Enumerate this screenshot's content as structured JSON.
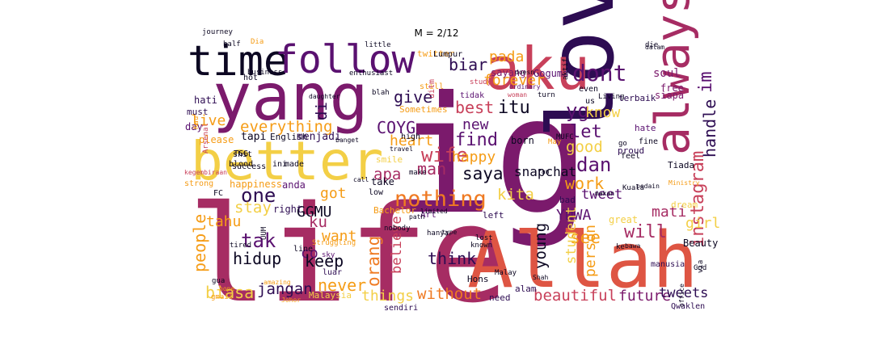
{
  "title": "M = 2/12",
  "palette": {
    "black": "#0c0722",
    "indigo": "#2d0c52",
    "purple": "#5a1170",
    "plum": "#7b1a6c",
    "magenta": "#a62c63",
    "rose": "#c8405a",
    "red": "#de5543",
    "orange": "#ef7a22",
    "amber": "#f59c16",
    "yellow": "#f3cf46",
    "pale": "#f4e39a"
  },
  "words": [
    {
      "text": "life",
      "color": "magenta"
    },
    {
      "text": "ig",
      "color": "plum"
    },
    {
      "text": "Allah",
      "color": "red"
    },
    {
      "text": "love",
      "color": "indigo"
    },
    {
      "text": "yang",
      "color": "plum"
    },
    {
      "text": "aku",
      "color": "rose"
    },
    {
      "text": "better",
      "color": "yellow"
    },
    {
      "text": "time",
      "color": "black"
    },
    {
      "text": "follow",
      "color": "purple"
    },
    {
      "text": "always",
      "color": "magenta"
    },
    {
      "text": "instagram",
      "color": "rose"
    },
    {
      "text": "im",
      "color": "purple"
    },
    {
      "text": "dont",
      "color": "purple"
    },
    {
      "text": "handle",
      "color": "indigo"
    },
    {
      "text": "biar",
      "color": "indigo"
    },
    {
      "text": "pada",
      "color": "amber"
    },
    {
      "text": "forever",
      "color": "amber"
    },
    {
      "text": "give",
      "color": "indigo"
    },
    {
      "text": "best",
      "color": "rose"
    },
    {
      "text": "itu",
      "color": "black"
    },
    {
      "text": "yg",
      "color": "purple"
    },
    {
      "text": "know",
      "color": "yellow"
    },
    {
      "text": "everything",
      "color": "amber"
    },
    {
      "text": "COYG",
      "color": "purple"
    },
    {
      "text": "di",
      "color": "indigo"
    },
    {
      "text": "new",
      "color": "purple"
    },
    {
      "text": "live",
      "color": "amber"
    },
    {
      "text": "heart",
      "color": "amber"
    },
    {
      "text": "find",
      "color": "purple"
    },
    {
      "text": "let",
      "color": "purple"
    },
    {
      "text": "good",
      "color": "yellow"
    },
    {
      "text": "dan",
      "color": "purple"
    },
    {
      "text": "wife",
      "color": "rose"
    },
    {
      "text": "happy",
      "color": "amber"
    },
    {
      "text": "man",
      "color": "magenta"
    },
    {
      "text": "saya",
      "color": "black"
    },
    {
      "text": "apa",
      "color": "magenta"
    },
    {
      "text": "work",
      "color": "amber"
    },
    {
      "text": "snapchat",
      "color": "black"
    },
    {
      "text": "nothing",
      "color": "orange"
    },
    {
      "text": "kita",
      "color": "yellow"
    },
    {
      "text": "one",
      "color": "indigo"
    },
    {
      "text": "got",
      "color": "amber"
    },
    {
      "text": "GGMU",
      "color": "black"
    },
    {
      "text": "stay",
      "color": "yellow"
    },
    {
      "text": "tahu",
      "color": "amber"
    },
    {
      "text": "tweet",
      "color": "purple"
    },
    {
      "text": "YNWA",
      "color": "purple"
    },
    {
      "text": "mati",
      "color": "magenta"
    },
    {
      "text": "girl",
      "color": "yellow"
    },
    {
      "text": "tak",
      "color": "purple"
    },
    {
      "text": "people",
      "color": "amber"
    },
    {
      "text": "ku",
      "color": "magenta"
    },
    {
      "text": "want",
      "color": "amber"
    },
    {
      "text": "co",
      "color": "purple"
    },
    {
      "text": "hidup",
      "color": "black"
    },
    {
      "text": "keep",
      "color": "black"
    },
    {
      "text": "orang",
      "color": "orange"
    },
    {
      "text": "believe",
      "color": "rose"
    },
    {
      "text": "think",
      "color": "indigo"
    },
    {
      "text": "young",
      "color": "black"
    },
    {
      "text": "see",
      "color": "amber"
    },
    {
      "text": "student",
      "color": "yellow"
    },
    {
      "text": "person",
      "color": "amber"
    },
    {
      "text": "will",
      "color": "magenta"
    },
    {
      "text": "biasa",
      "color": "yellow"
    },
    {
      "text": "jangan",
      "color": "indigo"
    },
    {
      "text": "never",
      "color": "amber"
    },
    {
      "text": "things",
      "color": "yellow"
    },
    {
      "text": "without",
      "color": "orange"
    },
    {
      "text": "beautiful",
      "color": "rose"
    },
    {
      "text": "future",
      "color": "plum"
    },
    {
      "text": "tweets",
      "color": "indigo"
    },
    {
      "text": "sayang",
      "color": "plum"
    },
    {
      "text": "Goguma",
      "color": "purple"
    },
    {
      "text": "soul",
      "color": "plum"
    },
    {
      "text": "free",
      "color": "plum"
    },
    {
      "text": "siapa",
      "color": "plum"
    },
    {
      "text": "terbaik",
      "color": "indigo"
    },
    {
      "text": "tapi",
      "color": "black"
    },
    {
      "text": "English",
      "color": "black"
    },
    {
      "text": "menjadi",
      "color": "indigo"
    },
    {
      "text": "please",
      "color": "amber"
    },
    {
      "text": "day",
      "color": "purple"
    },
    {
      "text": "hati",
      "color": "indigo"
    },
    {
      "text": "must",
      "color": "indigo"
    },
    {
      "text": "happiness",
      "color": "amber"
    },
    {
      "text": "anda",
      "color": "purple"
    },
    {
      "text": "right",
      "color": "indigo"
    },
    {
      "text": "smile",
      "color": "yellow"
    },
    {
      "text": "take",
      "color": "black"
    },
    {
      "text": "Bachelor",
      "color": "amber"
    },
    {
      "text": "Art",
      "color": "purple"
    },
    {
      "text": "born",
      "color": "black"
    },
    {
      "text": "bad",
      "color": "indigo"
    },
    {
      "text": "Hons",
      "color": "black"
    },
    {
      "text": "alam",
      "color": "indigo"
    },
    {
      "text": "need",
      "color": "indigo"
    },
    {
      "text": "sendiri",
      "color": "indigo"
    },
    {
      "text": "Malaysia",
      "color": "yellow"
    },
    {
      "text": "luar",
      "color": "indigo"
    },
    {
      "text": "hanya",
      "color": "black"
    },
    {
      "text": "left",
      "color": "indigo"
    },
    {
      "text": "great",
      "color": "yellow"
    },
    {
      "text": "proud",
      "color": "indigo"
    },
    {
      "text": "feel",
      "color": "black"
    },
    {
      "text": "hate",
      "color": "purple"
    },
    {
      "text": "fine",
      "color": "black"
    },
    {
      "text": "Tiada",
      "color": "black"
    },
    {
      "text": "dream",
      "color": "yellow"
    },
    {
      "text": "Beauty",
      "color": "black"
    },
    {
      "text": "manusia",
      "color": "indigo"
    },
    {
      "text": "Qwaklen",
      "color": "indigo"
    },
    {
      "text": "twitter",
      "color": "amber"
    },
    {
      "text": "Lumpur",
      "color": "black"
    },
    {
      "text": "still",
      "color": "amber"
    },
    {
      "text": "tidak",
      "color": "purple"
    },
    {
      "text": "Sometimes",
      "color": "amber"
    },
    {
      "text": "high",
      "color": "black"
    },
    {
      "text": "shit",
      "color": "black"
    },
    {
      "text": "blood",
      "color": "black"
    },
    {
      "text": "success",
      "color": "black"
    },
    {
      "text": "strong",
      "color": "amber"
    },
    {
      "text": "FC",
      "color": "black"
    },
    {
      "text": "TGG",
      "color": "black"
    },
    {
      "text": "ini",
      "color": "black"
    },
    {
      "text": "made",
      "color": "black"
    },
    {
      "text": "make",
      "color": "black"
    },
    {
      "text": "low",
      "color": "black"
    },
    {
      "text": "nobody",
      "color": "black"
    },
    {
      "text": "lost",
      "color": "black"
    },
    {
      "text": "known",
      "color": "black"
    },
    {
      "text": "line",
      "color": "black"
    },
    {
      "text": "travel",
      "color": "black"
    },
    {
      "text": "blah",
      "color": "black"
    },
    {
      "text": "daughter",
      "color": "black"
    },
    {
      "text": "hot",
      "color": "black"
    },
    {
      "text": "business",
      "color": "black"
    },
    {
      "text": "enthusiast",
      "color": "black"
    },
    {
      "text": "journey",
      "color": "black"
    },
    {
      "text": "little",
      "color": "black"
    },
    {
      "text": "Dia",
      "color": "amber"
    },
    {
      "text": "half",
      "color": "black"
    },
    {
      "text": "Kau",
      "color": "amber"
    },
    {
      "text": "Arsenal",
      "color": "rose"
    },
    {
      "text": "kegembiraan",
      "color": "rose"
    },
    {
      "text": "uitm",
      "color": "rose"
    },
    {
      "text": "study",
      "color": "rose"
    },
    {
      "text": "ordinary",
      "color": "purple"
    },
    {
      "text": "woman",
      "color": "rose"
    },
    {
      "text": "turn",
      "color": "black"
    },
    {
      "text": "us",
      "color": "black"
    },
    {
      "text": "aktif",
      "color": "black"
    },
    {
      "text": "even",
      "color": "black"
    },
    {
      "text": "Living",
      "color": "black"
    },
    {
      "text": "dalam",
      "color": "black"
    },
    {
      "text": "die",
      "color": "black"
    },
    {
      "text": "go",
      "color": "black"
    },
    {
      "text": "MUFC",
      "color": "black"
    },
    {
      "text": "May",
      "color": "amber"
    },
    {
      "text": "Kuala",
      "color": "black"
    },
    {
      "text": "Malay",
      "color": "black"
    },
    {
      "text": "Shah",
      "color": "black"
    },
    {
      "text": "ke",
      "color": "black"
    },
    {
      "text": "God",
      "color": "black"
    },
    {
      "text": "via",
      "color": "black"
    },
    {
      "text": "tired",
      "color": "black"
    },
    {
      "text": "sky",
      "color": "purple"
    },
    {
      "text": "gmail",
      "color": "amber"
    },
    {
      "text": "gua",
      "color": "black"
    },
    {
      "text": "UUM",
      "color": "black"
    },
    {
      "text": "Struggling",
      "color": "amber"
    },
    {
      "text": "Johor",
      "color": "amber"
    },
    {
      "text": "limited",
      "color": "black"
    },
    {
      "text": "path",
      "color": "black"
    },
    {
      "text": "call",
      "color": "black"
    },
    {
      "text": "type",
      "color": "black"
    },
    {
      "text": "makan",
      "color": "black"
    },
    {
      "text": "pedain",
      "color": "black"
    },
    {
      "text": "fan",
      "color": "black"
    },
    {
      "text": "office",
      "color": "black"
    },
    {
      "text": "bawa",
      "color": "black"
    },
    {
      "text": "doesn",
      "color": "black"
    },
    {
      "text": "banget",
      "color": "black"
    },
    {
      "text": "hope",
      "color": "amber"
    },
    {
      "text": "Ministry",
      "color": "amber"
    },
    {
      "text": "amazing",
      "color": "amber"
    },
    {
      "text": "Kerana",
      "color": "amber"
    }
  ]
}
